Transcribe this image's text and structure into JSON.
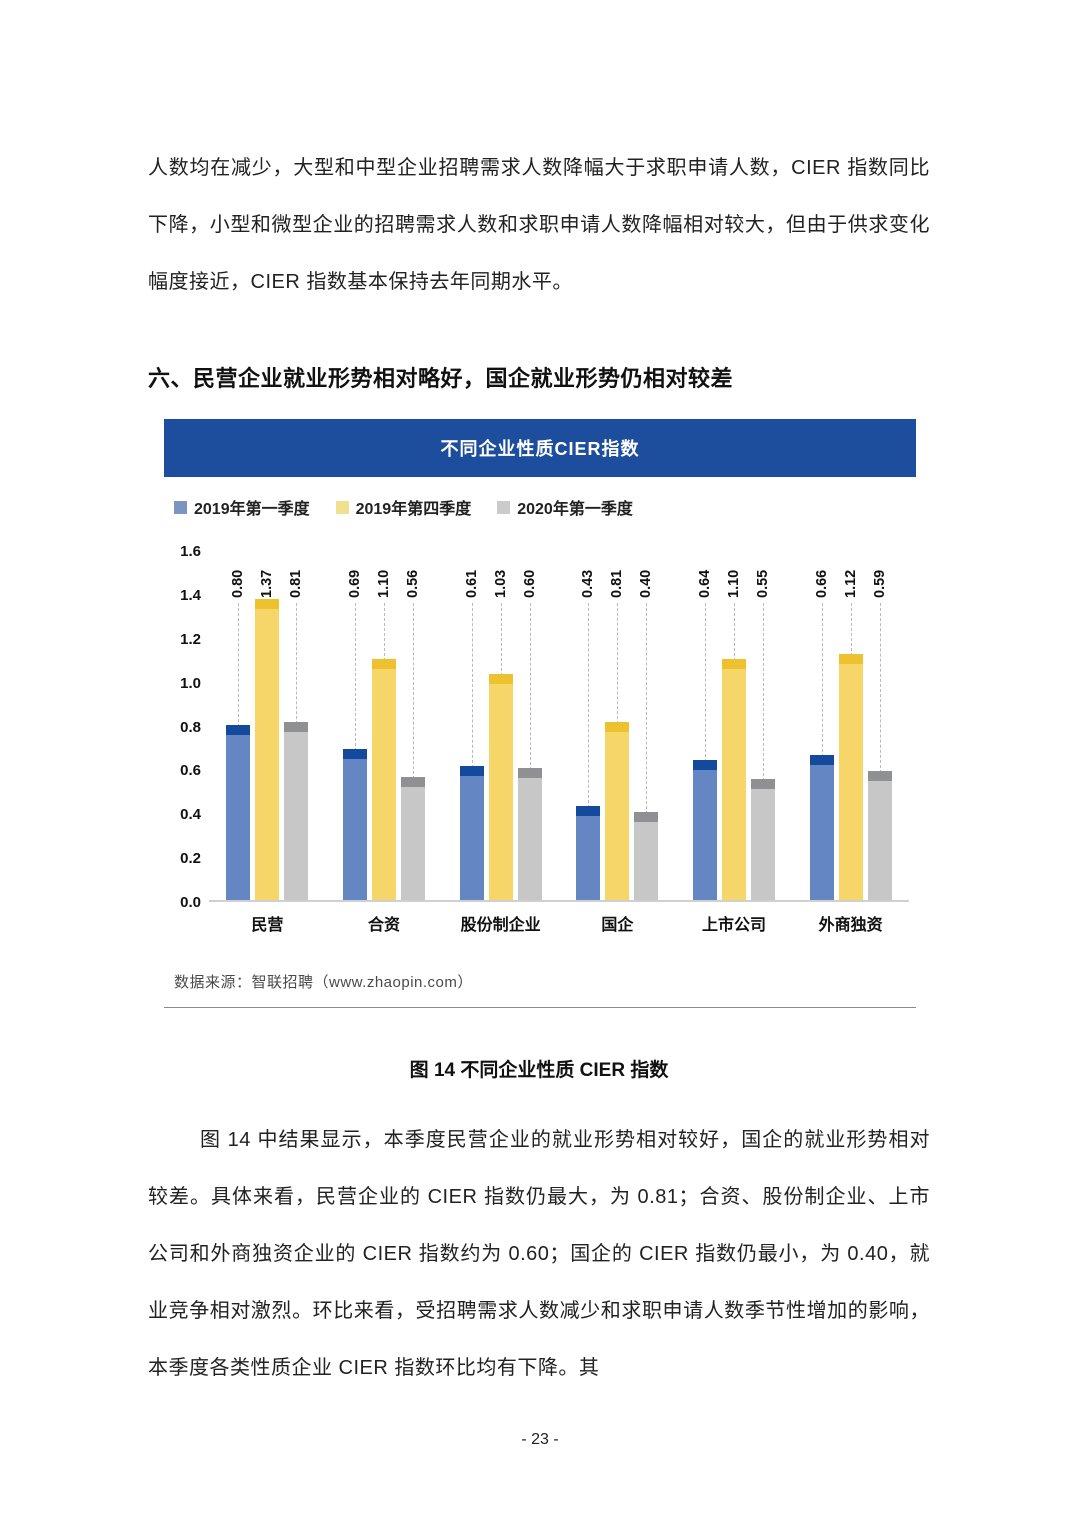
{
  "intro_paragraph": "人数均在减少，大型和中型企业招聘需求人数降幅大于求职申请人数，CIER 指数同比下降，小型和微型企业的招聘需求人数和求职申请人数降幅相对较大，但由于供求变化幅度接近，CIER 指数基本保持去年同期水平。",
  "section_heading": "六、民营企业就业形势相对略好，国企就业形势仍相对较差",
  "figure": {
    "banner_title": "不同企业性质CIER指数",
    "banner_color": "#1d4d9d",
    "source": "数据来源：智联招聘（www.zhaopin.com）",
    "caption": "图 14 不同企业性质 CIER 指数"
  },
  "chart_data": {
    "type": "bar",
    "title": "不同企业性质CIER指数",
    "categories": [
      "民营",
      "合资",
      "股份制企业",
      "国企",
      "上市公司",
      "外商独资"
    ],
    "series": [
      {
        "name": "2019年第一季度",
        "color": "#6487c4",
        "cap_color": "#134a9e",
        "legend_color": "#7c95be",
        "values": [
          0.8,
          0.69,
          0.61,
          0.43,
          0.64,
          0.66
        ]
      },
      {
        "name": "2019年第四季度",
        "color": "#f7d669",
        "cap_color": "#eec12f",
        "legend_color": "#f0e18f",
        "values": [
          1.37,
          1.1,
          1.03,
          0.81,
          1.1,
          1.12
        ]
      },
      {
        "name": "2020年第一季度",
        "color": "#c7c7c7",
        "cap_color": "#8e9092",
        "legend_color": "#cbcbcb",
        "values": [
          0.81,
          0.56,
          0.6,
          0.4,
          0.55,
          0.59
        ]
      }
    ],
    "ylim": [
      0,
      1.6
    ],
    "yticks": [
      "0.0",
      "0.2",
      "0.4",
      "0.6",
      "0.8",
      "1.0",
      "1.2",
      "1.4",
      "1.6"
    ],
    "grid": false,
    "legend_position": "top-left",
    "value_labels": "rotated-90-above-bars-with-dashed-leaders"
  },
  "body_paragraph": "图 14 中结果显示，本季度民营企业的就业形势相对较好，国企的就业形势相对较差。具体来看，民营企业的 CIER 指数仍最大，为 0.81；合资、股份制企业、上市公司和外商独资企业的 CIER 指数约为 0.60；国企的 CIER 指数仍最小，为 0.40，就业竞争相对激烈。环比来看，受招聘需求人数减少和求职申请人数季节性增加的影响，本季度各类性质企业 CIER 指数环比均有下降。其",
  "page_number": "- 23 -"
}
